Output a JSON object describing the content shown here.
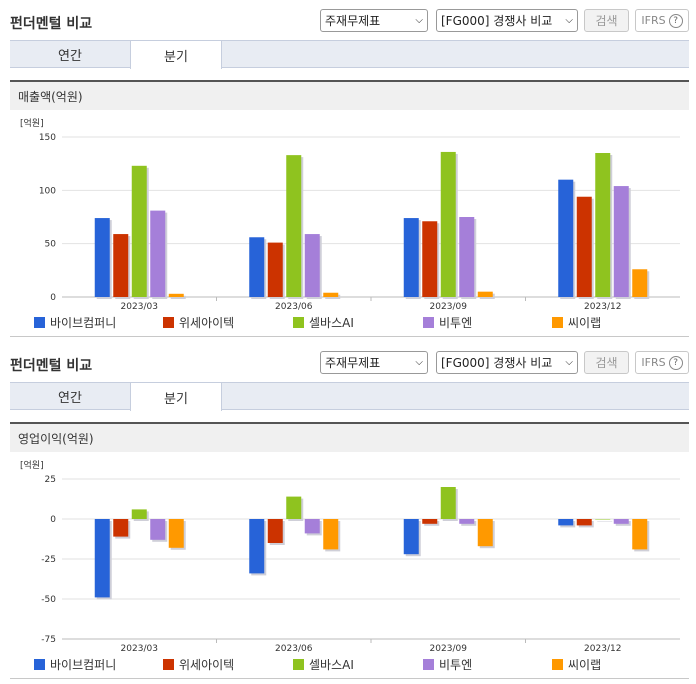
{
  "sections": [
    {
      "title": "펀더멘털 비교",
      "select1": "주재무제표",
      "select2": "[FG000] 경쟁사 비교",
      "search_label": "검색",
      "ifrs_label": "IFRS",
      "tabs": [
        "연간",
        "분기"
      ],
      "active_tab": 1,
      "panel_title": "매출액(억원)"
    },
    {
      "title": "펀더멘털 비교",
      "select1": "주재무제표",
      "select2": "[FG000] 경쟁사 비교",
      "search_label": "검색",
      "ifrs_label": "IFRS",
      "tabs": [
        "연간",
        "분기"
      ],
      "active_tab": 1,
      "panel_title": "영업이익(억원)"
    }
  ],
  "chart_data": [
    {
      "type": "bar",
      "unit_label": "[억원]",
      "categories": [
        "2023/03",
        "2023/06",
        "2023/09",
        "2023/12"
      ],
      "ylim": [
        0,
        150
      ],
      "yticks": [
        0,
        50,
        100,
        150
      ],
      "series": [
        {
          "name": "바이브컴퍼니",
          "color": "#2763d8",
          "values": [
            74,
            56,
            74,
            110
          ]
        },
        {
          "name": "위세아이텍",
          "color": "#cc3300",
          "values": [
            59,
            51,
            71,
            94
          ]
        },
        {
          "name": "셀바스AI",
          "color": "#8fc31f",
          "values": [
            123,
            133,
            136,
            135
          ]
        },
        {
          "name": "비투엔",
          "color": "#a57fd9",
          "values": [
            81,
            59,
            75,
            104
          ]
        },
        {
          "name": "씨이랩",
          "color": "#ff9900",
          "values": [
            3,
            4,
            5,
            26
          ]
        }
      ]
    },
    {
      "type": "bar",
      "unit_label": "[억원]",
      "categories": [
        "2023/03",
        "2023/06",
        "2023/09",
        "2023/12"
      ],
      "ylim": [
        -75,
        25
      ],
      "yticks": [
        -75,
        -50,
        -25,
        0,
        25
      ],
      "series": [
        {
          "name": "바이브컴퍼니",
          "color": "#2763d8",
          "values": [
            -49,
            -34,
            -22,
            -4
          ]
        },
        {
          "name": "위세아이텍",
          "color": "#cc3300",
          "values": [
            -11,
            -15,
            -3,
            -4
          ]
        },
        {
          "name": "셀바스AI",
          "color": "#8fc31f",
          "values": [
            6,
            14,
            20,
            0
          ]
        },
        {
          "name": "비투엔",
          "color": "#a57fd9",
          "values": [
            -13,
            -9,
            -3,
            -3
          ]
        },
        {
          "name": "씨이랩",
          "color": "#ff9900",
          "values": [
            -18,
            -19,
            -17,
            -19
          ]
        }
      ]
    }
  ]
}
